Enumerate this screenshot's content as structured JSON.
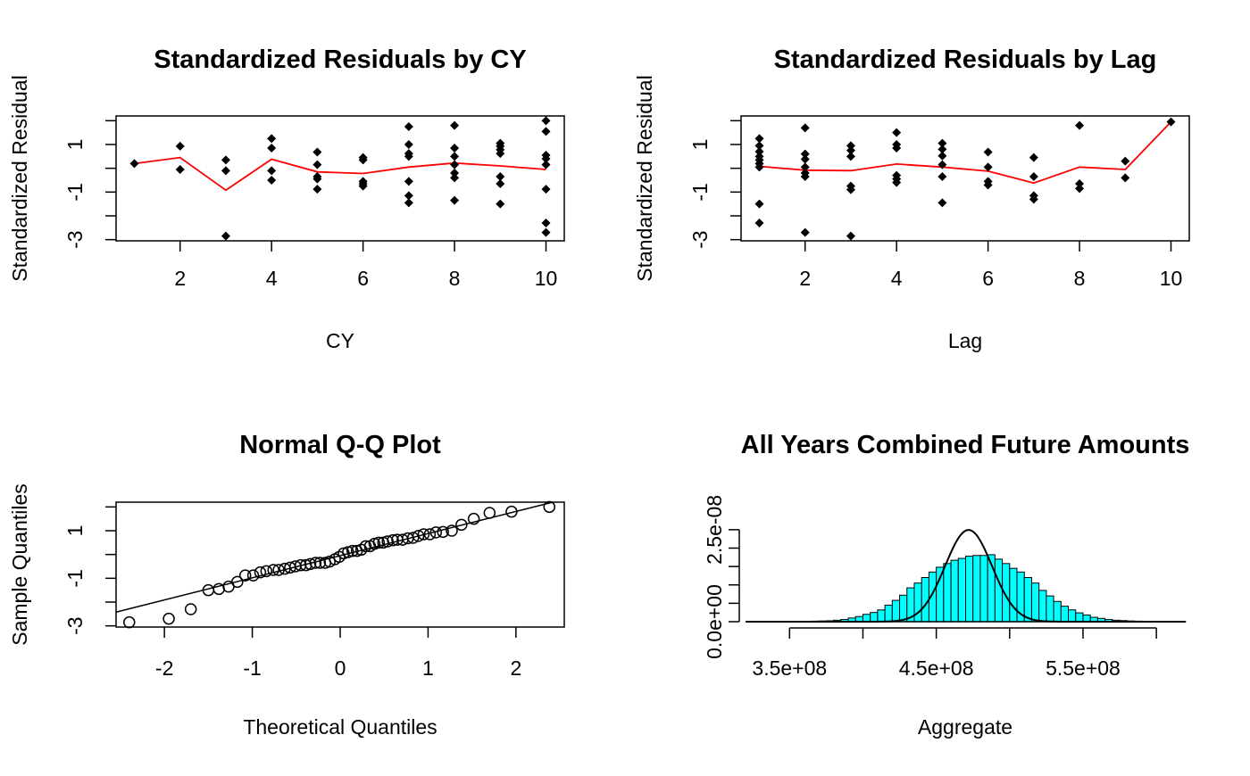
{
  "colors": {
    "points": "#000000",
    "trend": "#ff0000",
    "hist_fill": "#00ffff",
    "hist_stroke": "#000000",
    "density": "#000000",
    "axes": "#000000"
  },
  "chart_data": [
    {
      "type": "scatter",
      "title": "Standardized Residuals by CY",
      "xlabel": "CY",
      "ylabel": "Standardized Residual",
      "xlim": [
        0.6,
        10.4
      ],
      "ylim": [
        -3.05,
        2.2
      ],
      "xticks": [
        2,
        4,
        6,
        8,
        10
      ],
      "yticks": [
        -3,
        -2,
        -1,
        0,
        1,
        2
      ],
      "ytick_labels": [
        "-3",
        "",
        "-1",
        "",
        "1",
        ""
      ],
      "marker": "diamond",
      "points": [
        [
          1,
          0.2
        ],
        [
          2,
          0.93
        ],
        [
          2,
          -0.05
        ],
        [
          3,
          0.35
        ],
        [
          3,
          -0.1
        ],
        [
          3,
          -2.85
        ],
        [
          4,
          1.25
        ],
        [
          4,
          0.85
        ],
        [
          4,
          -0.1
        ],
        [
          4,
          -0.5
        ],
        [
          5,
          0.68
        ],
        [
          5,
          0.15
        ],
        [
          5,
          -0.35
        ],
        [
          5,
          -0.45
        ],
        [
          5,
          -0.88
        ],
        [
          6,
          0.45
        ],
        [
          6,
          0.35
        ],
        [
          6,
          -0.55
        ],
        [
          6,
          -0.65
        ],
        [
          6,
          -0.75
        ],
        [
          7,
          1.75
        ],
        [
          7,
          1.0
        ],
        [
          7,
          0.62
        ],
        [
          7,
          0.5
        ],
        [
          7,
          -0.55
        ],
        [
          7,
          -1.15
        ],
        [
          7,
          -1.45
        ],
        [
          8,
          1.8
        ],
        [
          8,
          0.85
        ],
        [
          8,
          0.5
        ],
        [
          8,
          0.15
        ],
        [
          8,
          -0.2
        ],
        [
          8,
          -0.4
        ],
        [
          8,
          -1.35
        ],
        [
          9,
          1.05
        ],
        [
          9,
          0.93
        ],
        [
          9,
          0.78
        ],
        [
          9,
          0.62
        ],
        [
          9,
          -0.35
        ],
        [
          9,
          -0.65
        ],
        [
          9,
          -1.5
        ],
        [
          10,
          2.0
        ],
        [
          10,
          1.55
        ],
        [
          10,
          0.55
        ],
        [
          10,
          0.4
        ],
        [
          10,
          0.15
        ],
        [
          10,
          -0.88
        ],
        [
          10,
          -2.3
        ],
        [
          10,
          -2.7
        ]
      ],
      "trend": {
        "x": [
          1,
          2,
          3,
          4,
          5,
          6,
          7,
          8,
          9,
          10
        ],
        "y": [
          0.2,
          0.45,
          -0.92,
          0.38,
          -0.15,
          -0.22,
          0.05,
          0.22,
          0.1,
          -0.05
        ]
      }
    },
    {
      "type": "scatter",
      "title": "Standardized Residuals by Lag",
      "xlabel": "Lag",
      "ylabel": "Standardized Residual",
      "xlim": [
        0.6,
        10.4
      ],
      "ylim": [
        -3.05,
        2.2
      ],
      "xticks": [
        2,
        4,
        6,
        8,
        10
      ],
      "yticks": [
        -3,
        -2,
        -1,
        0,
        1,
        2
      ],
      "ytick_labels": [
        "-3",
        "",
        "-1",
        "",
        "1",
        ""
      ],
      "marker": "diamond",
      "points": [
        [
          1,
          1.25
        ],
        [
          1,
          0.95
        ],
        [
          1,
          0.7
        ],
        [
          1,
          0.5
        ],
        [
          1,
          0.35
        ],
        [
          1,
          0.2
        ],
        [
          1,
          0.05
        ],
        [
          1,
          -1.5
        ],
        [
          1,
          -2.3
        ],
        [
          2,
          1.7
        ],
        [
          2,
          0.6
        ],
        [
          2,
          0.38
        ],
        [
          2,
          0.05
        ],
        [
          2,
          -0.2
        ],
        [
          2,
          -0.35
        ],
        [
          2,
          -2.7
        ],
        [
          3,
          0.95
        ],
        [
          3,
          0.75
        ],
        [
          3,
          0.5
        ],
        [
          3,
          -0.75
        ],
        [
          3,
          -0.9
        ],
        [
          3,
          -2.85
        ],
        [
          4,
          1.5
        ],
        [
          4,
          1.0
        ],
        [
          4,
          0.85
        ],
        [
          4,
          -0.3
        ],
        [
          4,
          -0.45
        ],
        [
          4,
          -0.6
        ],
        [
          5,
          1.05
        ],
        [
          5,
          0.8
        ],
        [
          5,
          0.52
        ],
        [
          5,
          0.15
        ],
        [
          5,
          -0.35
        ],
        [
          5,
          -1.45
        ],
        [
          6,
          0.68
        ],
        [
          6,
          0.05
        ],
        [
          6,
          -0.55
        ],
        [
          6,
          -0.7
        ],
        [
          7,
          0.45
        ],
        [
          7,
          -0.35
        ],
        [
          7,
          -1.15
        ],
        [
          7,
          -1.3
        ],
        [
          8,
          1.8
        ],
        [
          8,
          -0.65
        ],
        [
          8,
          -0.85
        ],
        [
          9,
          0.3
        ],
        [
          9,
          -0.4
        ],
        [
          10,
          1.95
        ]
      ],
      "trend": {
        "x": [
          1,
          2,
          3,
          4,
          5,
          6,
          7,
          8,
          9,
          10
        ],
        "y": [
          0.08,
          -0.08,
          -0.1,
          0.18,
          0.05,
          -0.12,
          -0.62,
          0.05,
          -0.05,
          1.95
        ]
      }
    },
    {
      "type": "scatter",
      "title": "Normal Q-Q Plot",
      "xlabel": "Theoretical Quantiles",
      "ylabel": "Sample Quantiles",
      "xlim": [
        -2.55,
        2.55
      ],
      "ylim": [
        -3.05,
        2.2
      ],
      "xticks": [
        -2,
        -1,
        0,
        1,
        2
      ],
      "yticks": [
        -3,
        -2,
        -1,
        0,
        1,
        2
      ],
      "ytick_labels": [
        "-3",
        "",
        "-1",
        "",
        "1",
        ""
      ],
      "marker": "circle",
      "points": [
        [
          -2.4,
          -2.85
        ],
        [
          -1.95,
          -2.7
        ],
        [
          -1.7,
          -2.3
        ],
        [
          -1.5,
          -1.5
        ],
        [
          -1.38,
          -1.45
        ],
        [
          -1.27,
          -1.35
        ],
        [
          -1.17,
          -1.15
        ],
        [
          -1.08,
          -0.88
        ],
        [
          -0.99,
          -0.88
        ],
        [
          -0.91,
          -0.75
        ],
        [
          -0.84,
          -0.7
        ],
        [
          -0.76,
          -0.65
        ],
        [
          -0.7,
          -0.65
        ],
        [
          -0.63,
          -0.6
        ],
        [
          -0.57,
          -0.55
        ],
        [
          -0.51,
          -0.5
        ],
        [
          -0.45,
          -0.45
        ],
        [
          -0.39,
          -0.45
        ],
        [
          -0.34,
          -0.4
        ],
        [
          -0.28,
          -0.35
        ],
        [
          -0.23,
          -0.35
        ],
        [
          -0.17,
          -0.35
        ],
        [
          -0.12,
          -0.3
        ],
        [
          -0.06,
          -0.2
        ],
        [
          -0.01,
          -0.1
        ],
        [
          0.04,
          0.05
        ],
        [
          0.09,
          0.1
        ],
        [
          0.14,
          0.15
        ],
        [
          0.19,
          0.15
        ],
        [
          0.24,
          0.2
        ],
        [
          0.29,
          0.35
        ],
        [
          0.34,
          0.35
        ],
        [
          0.39,
          0.45
        ],
        [
          0.44,
          0.5
        ],
        [
          0.49,
          0.5
        ],
        [
          0.54,
          0.55
        ],
        [
          0.6,
          0.6
        ],
        [
          0.65,
          0.62
        ],
        [
          0.71,
          0.62
        ],
        [
          0.77,
          0.68
        ],
        [
          0.83,
          0.7
        ],
        [
          0.89,
          0.78
        ],
        [
          0.95,
          0.85
        ],
        [
          1.02,
          0.85
        ],
        [
          1.09,
          0.93
        ],
        [
          1.17,
          0.95
        ],
        [
          1.27,
          1.0
        ],
        [
          1.38,
          1.25
        ],
        [
          1.52,
          1.5
        ],
        [
          1.7,
          1.75
        ],
        [
          1.95,
          1.8
        ],
        [
          2.38,
          2.0
        ]
      ],
      "reference_line": {
        "intercept": -0.05,
        "slope": 0.93
      }
    },
    {
      "type": "bar",
      "title": "All Years Combined Future Amounts",
      "xlabel": "Aggregate",
      "ylabel": "",
      "xlim": [
        320000000,
        620000000
      ],
      "ylim": [
        0,
        3.2e-08
      ],
      "xticks": [
        350000000,
        400000000,
        450000000,
        500000000,
        550000000,
        600000000
      ],
      "xtick_labels": [
        "3.5e+08",
        "",
        "4.5e+08",
        "",
        "5.5e+08",
        ""
      ],
      "yticks": [
        0,
        5e-09,
        1e-08,
        1.5e-08,
        2e-08,
        2.5e-08
      ],
      "ytick_labels": [
        "0.0e+00",
        "",
        "",
        "",
        "",
        "2.5e-08"
      ],
      "bin_start": 360000000,
      "bin_width": 5000000,
      "densities": [
        1e-10,
        1.5e-10,
        2e-10,
        2.5e-10,
        4e-10,
        6e-10,
        1e-09,
        1.4e-09,
        2e-09,
        2.5e-09,
        3.2e-09,
        4.5e-09,
        5.8e-09,
        7.2e-09,
        9.2e-09,
        1.05e-08,
        1.2e-08,
        1.35e-08,
        1.48e-08,
        1.58e-08,
        1.67e-08,
        1.72e-08,
        1.78e-08,
        1.8e-08,
        1.8e-08,
        1.82e-08,
        1.7e-08,
        1.58e-08,
        1.45e-08,
        1.35e-08,
        1.2e-08,
        1.05e-08,
        8.5e-09,
        7e-09,
        5.5e-09,
        4.2e-09,
        3.2e-09,
        2.4e-09,
        1.8e-09,
        1.2e-09,
        9e-10,
        6e-10,
        4e-10,
        3e-10,
        2e-10,
        1.5e-10,
        1e-10,
        8e-11,
        5e-11,
        3e-11,
        2e-11,
        1e-11
      ],
      "density_curve": {
        "mean": 472000000,
        "sd": 16000000
      }
    }
  ]
}
